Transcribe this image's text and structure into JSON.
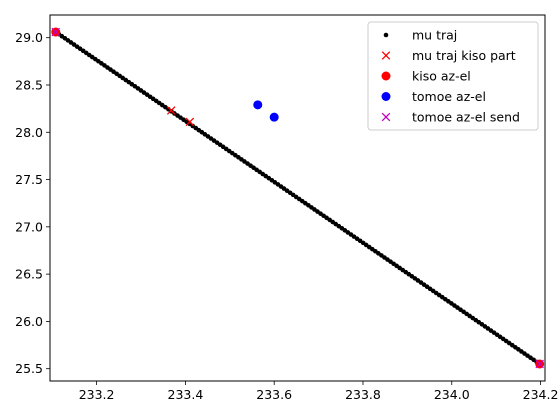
{
  "chart_data": {
    "type": "scatter",
    "xlim": [
      233.095,
      234.21
    ],
    "ylim": [
      25.37,
      29.24
    ],
    "x_ticks": [
      233.2,
      233.4,
      233.6,
      233.8,
      234.0,
      234.2
    ],
    "x_tick_labels": [
      "233.2",
      "233.4",
      "233.6",
      "233.8",
      "234.0",
      "234.2"
    ],
    "y_ticks": [
      25.5,
      26.0,
      26.5,
      27.0,
      27.5,
      28.0,
      28.5,
      29.0
    ],
    "y_tick_labels": [
      "25.5",
      "26.0",
      "26.5",
      "27.0",
      "27.5",
      "28.0",
      "28.5",
      "29.0"
    ],
    "grid": false,
    "legend_position": "top-right",
    "series": [
      {
        "name": "mu traj",
        "marker": "dot",
        "color": "#000000",
        "line_start": {
          "x": 233.108,
          "y": 29.06
        },
        "line_end": {
          "x": 234.198,
          "y": 25.55
        },
        "point_count": 160
      },
      {
        "name": "mu traj kiso part",
        "marker": "x",
        "color": "#ff0000",
        "points": [
          {
            "x": 233.368,
            "y": 28.23
          },
          {
            "x": 233.41,
            "y": 28.11
          }
        ]
      },
      {
        "name": "kiso az-el",
        "marker": "circle",
        "color": "#ff0000",
        "points": [
          {
            "x": 233.108,
            "y": 29.06
          },
          {
            "x": 234.198,
            "y": 25.55
          }
        ]
      },
      {
        "name": "tomoe az-el",
        "marker": "circle",
        "color": "#0000ff",
        "points": [
          {
            "x": 233.563,
            "y": 28.29
          },
          {
            "x": 233.6,
            "y": 28.16
          }
        ]
      },
      {
        "name": "tomoe az-el send",
        "marker": "x",
        "color": "#bf00bf",
        "points": [
          {
            "x": 233.108,
            "y": 29.06
          },
          {
            "x": 234.198,
            "y": 25.55
          }
        ]
      }
    ]
  }
}
